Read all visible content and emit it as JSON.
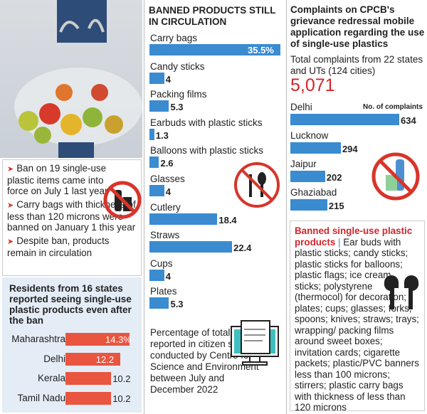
{
  "left": {
    "bullets": [
      "Ban on 19 single-use plastic items came into force on July 1 last year",
      "Carry bags with thickness of less than 120 microns were banned on January 1 this year",
      "Despite ban, products remain in circulation"
    ]
  },
  "middle": {
    "note": "Percentage of total reported in citizen survey conducted by Centre for Science and Environment between July and December 2022"
  },
  "right": {
    "total_text": "Total complaints from 22 states and UTs (124 cities)",
    "total_value": "5,071",
    "banned_heading": "Banned single-use plastic products",
    "banned_sep": "|",
    "banned_list": "Ear buds with plastic sticks; candy sticks; plastic sticks for balloons; plastic flags; ice cream sticks; polystyrene (thermocol) for decoration; plates; cups; glasses; forks; spoons; knives; straws; trays; wrapping/ packing films around sweet boxes; invitation cards; cigarette packets; plastic/PVC banners less than 100 microns; stirrers; plastic carry bags with thickness of less than 120 microns"
  },
  "colors": {
    "blue_bar": "#3a8bd0",
    "red_bar": "#e9553f",
    "accent_red": "#d1262c"
  },
  "chart_data": [
    {
      "type": "bar",
      "title": "BANNED PRODUCTS STILL IN CIRCULATION",
      "categories": [
        "Carry bags",
        "Candy sticks",
        "Packing films",
        "Earbuds with plastic sticks",
        "Balloons with plastic sticks",
        "Glasses",
        "Cutlery",
        "Straws",
        "Cups",
        "Plates"
      ],
      "values": [
        35.5,
        4,
        5.3,
        1.3,
        2.6,
        4,
        18.4,
        22.4,
        4,
        5.3
      ],
      "labels": [
        "35.5%",
        "4",
        "5.3",
        "1.3",
        "2.6",
        "4",
        "18.4",
        "22.4",
        "4",
        "5.3"
      ],
      "orientation": "horizontal"
    },
    {
      "type": "bar",
      "title": "Complaints on CPCB's grievance redressal mobile application regarding the use of single-use plastics",
      "unit_label": "No. of complaints",
      "categories": [
        "Delhi",
        "Lucknow",
        "Jaipur",
        "Ghaziabad"
      ],
      "values": [
        634,
        294,
        202,
        215
      ],
      "labels": [
        "634",
        "294",
        "202",
        "215"
      ],
      "orientation": "horizontal"
    },
    {
      "type": "bar",
      "title": "Residents from 16 states reported seeing single-use plastic products even after the ban",
      "categories": [
        "Maharashtra",
        "Delhi",
        "Kerala",
        "Tamil Nadu"
      ],
      "values": [
        14.3,
        12.2,
        10.2,
        10.2
      ],
      "labels": [
        "14.3%",
        "12.2",
        "10.2",
        "10.2"
      ],
      "orientation": "horizontal"
    }
  ]
}
